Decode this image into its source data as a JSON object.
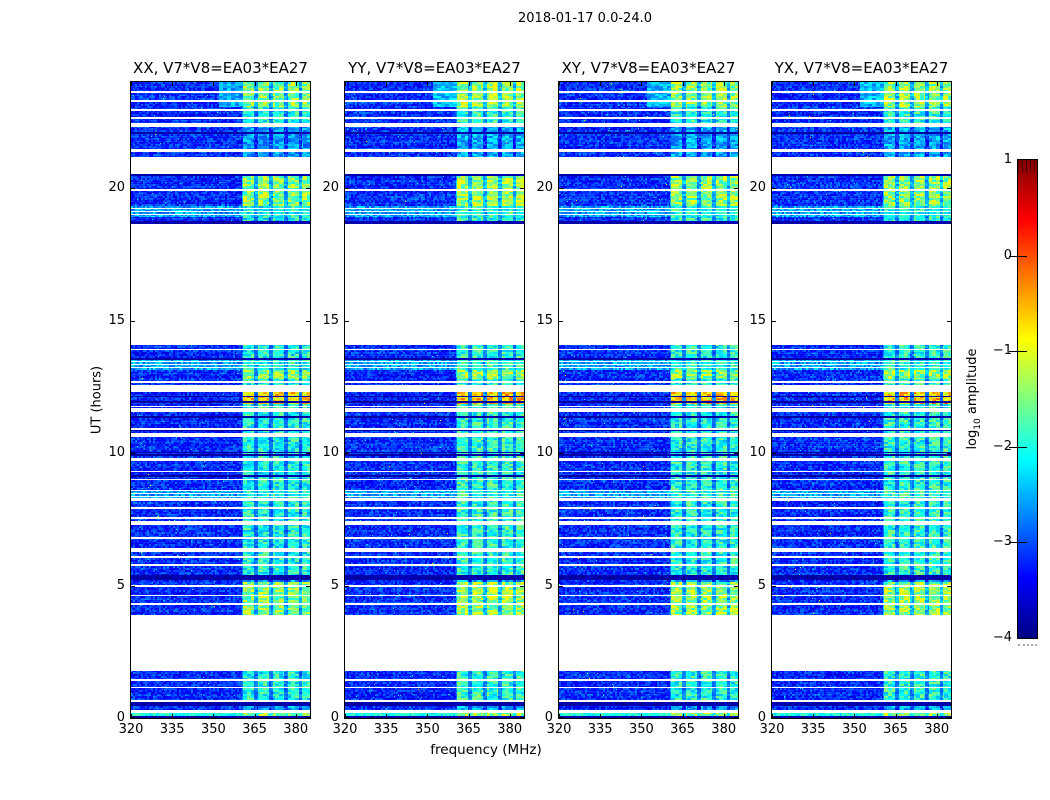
{
  "figure": {
    "title": "2018-01-17 0.0-24.0",
    "xlabel": "frequency (MHz)",
    "ylabel": "UT (hours)"
  },
  "colorbar_label": {
    "prefix": "log",
    "sub": "10",
    "suffix": " amplitude"
  },
  "chart_data": {
    "type": "heatmap",
    "title": "2018-01-17 0.0-24.0",
    "xlabel": "frequency (MHz)",
    "ylabel": "UT (hours)",
    "panels": [
      {
        "label": "XX",
        "title": "XX, V7*V8=EA03*EA27"
      },
      {
        "label": "YY",
        "title": "YY, V7*V8=EA03*EA27"
      },
      {
        "label": "XY",
        "title": "XY, V7*V8=EA03*EA27"
      },
      {
        "label": "YX",
        "title": "YX, V7*V8=EA03*EA27"
      }
    ],
    "x_range": [
      320,
      385.2
    ],
    "y_range": [
      0,
      24
    ],
    "x_ticks": [
      320,
      335,
      350,
      365,
      380
    ],
    "y_ticks": [
      0,
      5,
      10,
      15,
      20
    ],
    "colorbar": {
      "label": "log10 amplitude",
      "range": [
        -4,
        1
      ],
      "tick_values": [
        1,
        0,
        -1,
        -2,
        -3,
        -4
      ],
      "tick_labels": [
        "1",
        "0",
        "−1",
        "−2",
        "−3",
        "−4"
      ],
      "colormap": "jet",
      "stops": [
        {
          "pos": 0.0,
          "color": "#000082"
        },
        {
          "pos": 0.125,
          "color": "#0000ff"
        },
        {
          "pos": 0.375,
          "color": "#00ffff"
        },
        {
          "pos": 0.625,
          "color": "#ffff00"
        },
        {
          "pos": 0.875,
          "color": "#ff0000"
        },
        {
          "pos": 1.0,
          "color": "#800000"
        }
      ]
    },
    "rfi_band": {
      "f_start": 360.5,
      "f_end": 385.2,
      "wide_band_start": 352,
      "stripe_centers": [
        362.8,
        368.3,
        373.8,
        379.3,
        384.3
      ],
      "stripe_halfwidth": 2.0
    },
    "segments": [
      [
        0.0,
        0.08,
        "d",
        0
      ],
      [
        0.08,
        0.19,
        "b",
        3
      ],
      [
        0.19,
        0.3,
        "w",
        0
      ],
      [
        0.3,
        0.45,
        "n",
        1
      ],
      [
        0.45,
        0.6,
        "d",
        0
      ],
      [
        0.6,
        0.68,
        "w",
        0
      ],
      [
        0.68,
        1.77,
        "n",
        2
      ],
      [
        1.77,
        3.88,
        "w",
        0
      ],
      [
        3.88,
        5.12,
        "n",
        3
      ],
      [
        5.12,
        5.2,
        "n",
        1
      ],
      [
        5.2,
        5.38,
        "d",
        0
      ],
      [
        5.38,
        6.28,
        "n",
        2
      ],
      [
        6.28,
        6.4,
        "w",
        0
      ],
      [
        6.4,
        7.3,
        "n",
        2
      ],
      [
        7.3,
        7.42,
        "w",
        0
      ],
      [
        7.42,
        8.18,
        "n",
        2
      ],
      [
        8.18,
        8.3,
        "w",
        0
      ],
      [
        8.3,
        8.62,
        "s",
        2
      ],
      [
        8.62,
        9.7,
        "n",
        2
      ],
      [
        9.7,
        9.82,
        "w",
        0
      ],
      [
        9.82,
        10.6,
        "n",
        2
      ],
      [
        10.6,
        10.75,
        "w",
        0
      ],
      [
        10.75,
        11.55,
        "n",
        2
      ],
      [
        11.55,
        11.68,
        "w",
        0
      ],
      [
        11.68,
        11.86,
        "n",
        2
      ],
      [
        11.86,
        12.32,
        "n",
        4
      ],
      [
        12.32,
        12.55,
        "w",
        0
      ],
      [
        12.55,
        12.78,
        "n",
        2
      ],
      [
        12.78,
        13.12,
        "n",
        3
      ],
      [
        13.12,
        13.52,
        "s",
        2
      ],
      [
        13.52,
        13.6,
        "d",
        0
      ],
      [
        13.6,
        14.07,
        "n",
        2
      ],
      [
        14.07,
        18.66,
        "w",
        0
      ],
      [
        18.66,
        18.74,
        "d",
        0
      ],
      [
        18.74,
        18.92,
        "n",
        2
      ],
      [
        18.92,
        19.32,
        "s",
        2
      ],
      [
        19.32,
        20.46,
        "n",
        3
      ],
      [
        20.46,
        20.54,
        "d",
        0
      ],
      [
        20.54,
        21.18,
        "w",
        0
      ],
      [
        21.18,
        21.34,
        "n",
        1
      ],
      [
        21.34,
        21.46,
        "w",
        0
      ],
      [
        21.46,
        22.04,
        "n",
        1
      ],
      [
        22.04,
        22.12,
        "d",
        0
      ],
      [
        22.12,
        22.3,
        "n",
        1
      ],
      [
        22.3,
        22.46,
        "w",
        0
      ],
      [
        22.46,
        23.05,
        "n",
        2
      ],
      [
        23.05,
        24.0,
        "n",
        3,
        1
      ]
    ],
    "white_lines": [
      23.62,
      23.28,
      22.94,
      22.64,
      19.92,
      13.9,
      12.68,
      11.75,
      10.9,
      9.3,
      9.0,
      7.92,
      7.54,
      6.8,
      6.08,
      5.77,
      4.99,
      4.62,
      4.3,
      1.43,
      1.15
    ],
    "dark_lines": [
      12.14,
      11.92,
      11.36,
      10.87,
      10.02,
      9.92,
      9.13
    ],
    "panel_rfi_gain": [
      0,
      0.12,
      0.04,
      0.08
    ]
  }
}
